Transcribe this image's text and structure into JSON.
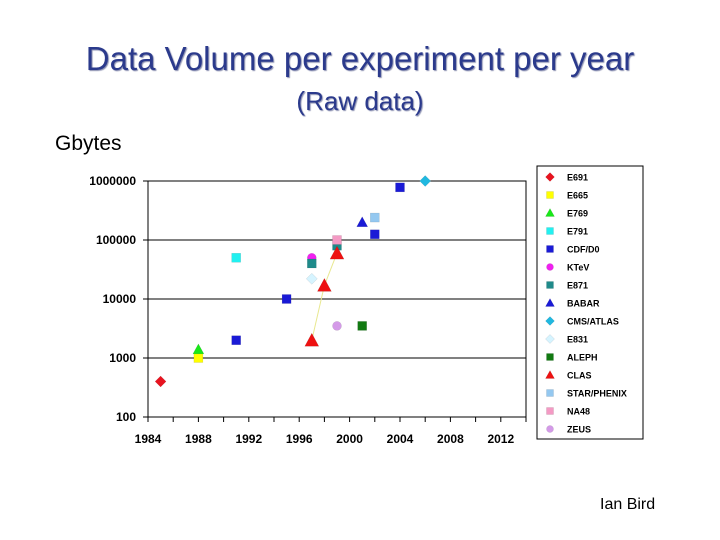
{
  "slide": {
    "title": "Data Volume per experiment per year",
    "subtitle": "(Raw data)",
    "author": "Ian Bird"
  },
  "colors": {
    "title": "#2b3a8c",
    "grid": "#000000",
    "trend_line": "#e8e890"
  },
  "chart_data": {
    "type": "scatter",
    "title": "Data Volume per experiment per year",
    "subtitle": "(Raw data)",
    "ylabel": "Gbytes",
    "xlabel": "",
    "y_scale": "log",
    "xlim": [
      1984,
      2014
    ],
    "ylim": [
      100,
      1000000
    ],
    "x_ticks": [
      1984,
      1988,
      1992,
      1996,
      2000,
      2004,
      2008,
      2012
    ],
    "y_ticks": [
      100,
      1000,
      10000,
      100000,
      1000000
    ],
    "y_tick_labels": [
      "100",
      "1000",
      "10000",
      "100000",
      "1000000"
    ],
    "grid": "horizontal",
    "legend_position": "right",
    "series": [
      {
        "name": "E691",
        "marker": "diamond",
        "color": "#e8131f",
        "points": [
          [
            1985,
            400
          ]
        ]
      },
      {
        "name": "E665",
        "marker": "square",
        "color": "#ffff00",
        "points": [
          [
            1988,
            1000
          ]
        ]
      },
      {
        "name": "E769",
        "marker": "triangle",
        "color": "#18e818",
        "points": [
          [
            1988,
            1400
          ]
        ]
      },
      {
        "name": "E791",
        "marker": "square",
        "color": "#22f0f0",
        "points": [
          [
            1991,
            50000
          ]
        ]
      },
      {
        "name": "CDF/D0",
        "marker": "square",
        "color": "#1a1ad6",
        "points": [
          [
            1991,
            2000
          ],
          [
            1995,
            10000
          ],
          [
            2002,
            125000
          ],
          [
            2004,
            780000
          ]
        ]
      },
      {
        "name": "KTeV",
        "marker": "circle",
        "color": "#f020f0",
        "points": [
          [
            1997,
            50000
          ]
        ]
      },
      {
        "name": "E871",
        "marker": "square",
        "color": "#1f8a8a",
        "points": [
          [
            1997,
            40000
          ],
          [
            1999,
            80000
          ]
        ]
      },
      {
        "name": "BABAR",
        "marker": "triangle",
        "color": "#1a1ad6",
        "points": [
          [
            2001,
            200000
          ]
        ]
      },
      {
        "name": "CMS/ATLAS",
        "marker": "diamond",
        "color": "#20b8e0",
        "points": [
          [
            2006,
            1000000
          ]
        ]
      },
      {
        "name": "E831",
        "marker": "diamond",
        "color": "#d6f4ff",
        "points": [
          [
            1997,
            22000
          ]
        ]
      },
      {
        "name": "ALEPH",
        "marker": "square",
        "color": "#127a12",
        "points": [
          [
            2001,
            3500
          ]
        ]
      },
      {
        "name": "CLAS",
        "marker": "triangle",
        "color": "#ee1111",
        "points": [
          [
            1997,
            2000
          ],
          [
            1998,
            17000
          ],
          [
            1999,
            60000
          ]
        ]
      },
      {
        "name": "STAR/PHENIX",
        "marker": "square",
        "color": "#94c8f0",
        "points": [
          [
            2002,
            240000
          ]
        ]
      },
      {
        "name": "NA48",
        "marker": "square",
        "color": "#f49ac4",
        "points": [
          [
            1999,
            100000
          ]
        ]
      },
      {
        "name": "ZEUS",
        "marker": "circle",
        "color": "#d49ae8",
        "points": [
          [
            1999,
            3500
          ]
        ]
      }
    ]
  }
}
